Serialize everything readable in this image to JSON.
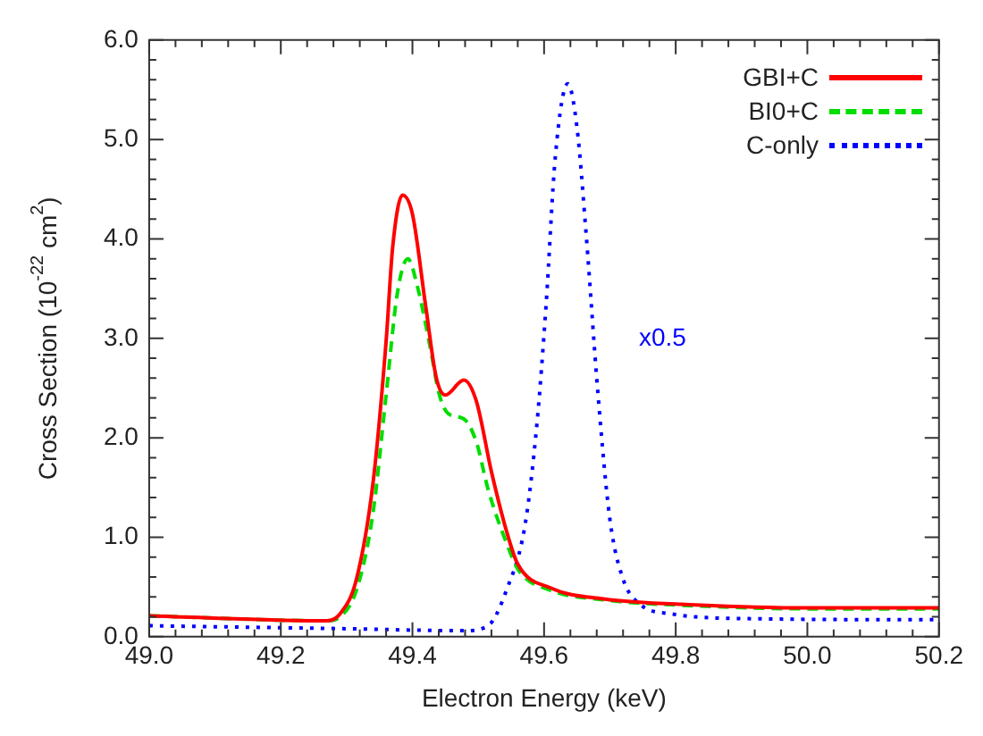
{
  "chart_data": {
    "type": "line",
    "xlabel": "Electron Energy (keV)",
    "ylabel": "Cross Section (10$^{-22}$ cm$^{2}$)",
    "xlim": [
      49.0,
      50.2
    ],
    "xticks": [
      {
        "value": 49.0,
        "label": "49.0"
      },
      49.2,
      49.4,
      49.6,
      49.8,
      {
        "value": 50.0,
        "label": "50.0"
      },
      50.2
    ],
    "ylim": [
      0,
      6
    ],
    "yticks": [
      {
        "value": 0,
        "label": "0.0"
      },
      {
        "value": 1,
        "label": "1.0"
      },
      {
        "value": 2,
        "label": "2.0"
      },
      {
        "value": 3,
        "label": "3.0"
      },
      {
        "value": 4,
        "label": "4.0"
      },
      {
        "value": 5,
        "label": "5.0"
      },
      {
        "value": 6,
        "label": "6.0"
      }
    ],
    "grid": false,
    "legend": "top right",
    "marker": "none",
    "annotations": [
      "x0.5"
    ],
    "series": [
      {
        "name": "GBI+C",
        "color": "#ff0000",
        "line_style": "solid",
        "x": [
          49.0,
          49.27,
          49.29,
          49.315,
          49.34,
          49.36,
          49.37,
          49.385,
          49.4,
          49.42,
          49.436,
          49.45,
          49.478,
          49.497,
          49.52,
          49.543,
          49.56,
          49.61,
          49.69,
          49.83,
          50.0,
          50.2
        ],
        "values": [
          0.21,
          0.16,
          0.23,
          0.58,
          1.54,
          2.97,
          3.92,
          4.44,
          4.25,
          3.33,
          2.61,
          2.43,
          2.58,
          2.37,
          1.66,
          1.06,
          0.73,
          0.49,
          0.38,
          0.32,
          0.29,
          0.29
        ]
      },
      {
        "name": "BI0+C",
        "color": "#00dd00",
        "line_style": "dashed",
        "x": [
          49.0,
          49.27,
          49.29,
          49.315,
          49.34,
          49.36,
          49.377,
          49.393,
          49.408,
          49.427,
          49.441,
          49.455,
          49.478,
          49.497,
          49.515,
          49.543,
          49.561,
          49.608,
          49.69,
          49.83,
          50.0,
          50.2
        ],
        "values": [
          0.21,
          0.16,
          0.2,
          0.47,
          1.24,
          2.43,
          3.45,
          3.8,
          3.51,
          2.91,
          2.43,
          2.24,
          2.19,
          1.96,
          1.48,
          0.94,
          0.67,
          0.47,
          0.37,
          0.31,
          0.28,
          0.28
        ]
      },
      {
        "name": "C-only",
        "color": "#0000ff",
        "line_style": "dotted",
        "x": [
          49.0,
          49.3,
          49.478,
          49.515,
          49.543,
          49.571,
          49.589,
          49.603,
          49.617,
          49.636,
          49.65,
          49.664,
          49.682,
          49.7,
          49.72,
          49.747,
          49.793,
          49.923,
          50.2
        ],
        "values": [
          0.11,
          0.08,
          0.06,
          0.11,
          0.47,
          1.12,
          2.13,
          3.33,
          4.82,
          5.56,
          5.12,
          4.04,
          2.43,
          1.18,
          0.58,
          0.32,
          0.23,
          0.18,
          0.17
        ]
      }
    ]
  }
}
